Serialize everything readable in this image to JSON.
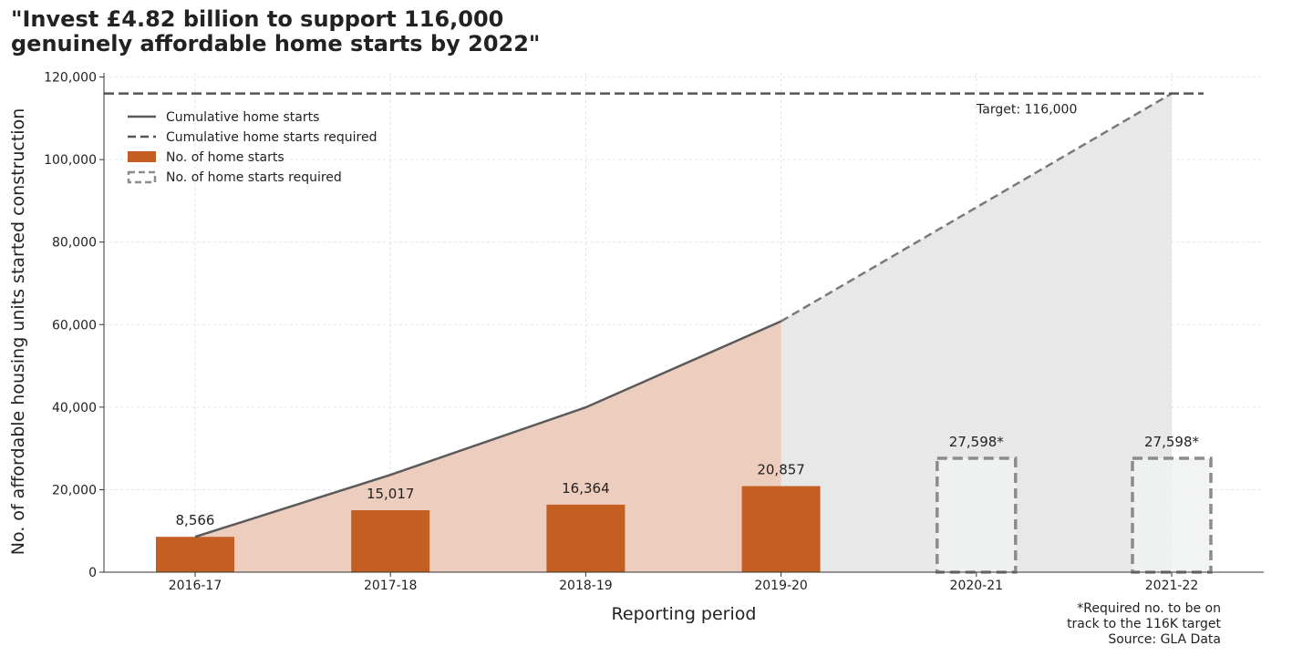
{
  "chart_data": {
    "type": "bar",
    "title": "\"Invest £4.82 billion to support 116,000\ngenuinely affordable home starts by 2022\"",
    "xlabel": "Reporting period",
    "ylabel": "No. of affordable housing units started construction",
    "categories": [
      "2016-17",
      "2017-18",
      "2018-19",
      "2019-20",
      "2020-21",
      "2021-22"
    ],
    "ylim": [
      0,
      121000
    ],
    "yticks": [
      0,
      20000,
      40000,
      60000,
      80000,
      100000,
      120000
    ],
    "ytick_labels": [
      "0",
      "20,000",
      "40,000",
      "60,000",
      "80,000",
      "100,000",
      "120,000"
    ],
    "grid": true,
    "legend_position": "top-left",
    "series": [
      {
        "name": "No. of home starts",
        "kind": "bar",
        "color": "#c55e22",
        "values": [
          8566,
          15017,
          16364,
          20857,
          null,
          null
        ],
        "labels": [
          "8,566",
          "15,017",
          "16,364",
          "20,857",
          "",
          ""
        ]
      },
      {
        "name": "No. of home starts required",
        "kind": "bar-dashed",
        "color": "#8c8c8c",
        "values": [
          null,
          null,
          null,
          null,
          27598,
          27598
        ],
        "labels": [
          "",
          "",
          "",
          "",
          "27,598*",
          "27,598*"
        ]
      },
      {
        "name": "Cumulative home starts",
        "kind": "line",
        "color": "#5a5a5a",
        "values": [
          8566,
          23583,
          39947,
          60804,
          null,
          null
        ]
      },
      {
        "name": "Cumulative home starts required",
        "kind": "line-dashed",
        "color": "#7a7a7a",
        "values": [
          null,
          null,
          null,
          60804,
          88402,
          116000
        ]
      }
    ],
    "target": {
      "value": 116000,
      "label": "Target: 116,000"
    },
    "colors": {
      "bar": "#c55e22",
      "actual_fill": "#edcdbd",
      "required_fill": "#e8e8e8",
      "required_bar_fill": "#f0f1f1",
      "grid": "#dddddd",
      "axis": "#333333"
    }
  },
  "footnote": {
    "line1": "*Required no. to be on",
    "line2": "track to the 116K target",
    "source": "Source: GLA Data"
  }
}
